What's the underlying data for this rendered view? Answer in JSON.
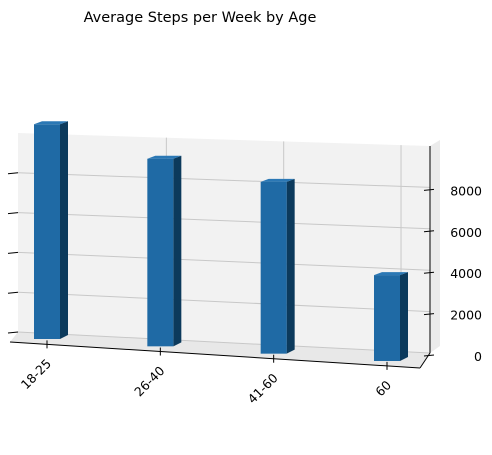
{
  "chart_data": {
    "type": "bar",
    "title": "Average Steps per Week by Age",
    "xlabel": "",
    "ylabel": "",
    "categories": [
      "18-25",
      "26-40",
      "41-60",
      "60"
    ],
    "values": [
      9500,
      8300,
      7600,
      3800
    ],
    "yticks": [
      0,
      2000,
      4000,
      6000,
      8000
    ],
    "ylim": [
      0,
      10000
    ],
    "grid": true,
    "projection": "3d",
    "colors": {
      "bar_face": "#1f6aa5",
      "bar_side": "#0c3a5c",
      "bar_top": "#2b78b5"
    }
  }
}
